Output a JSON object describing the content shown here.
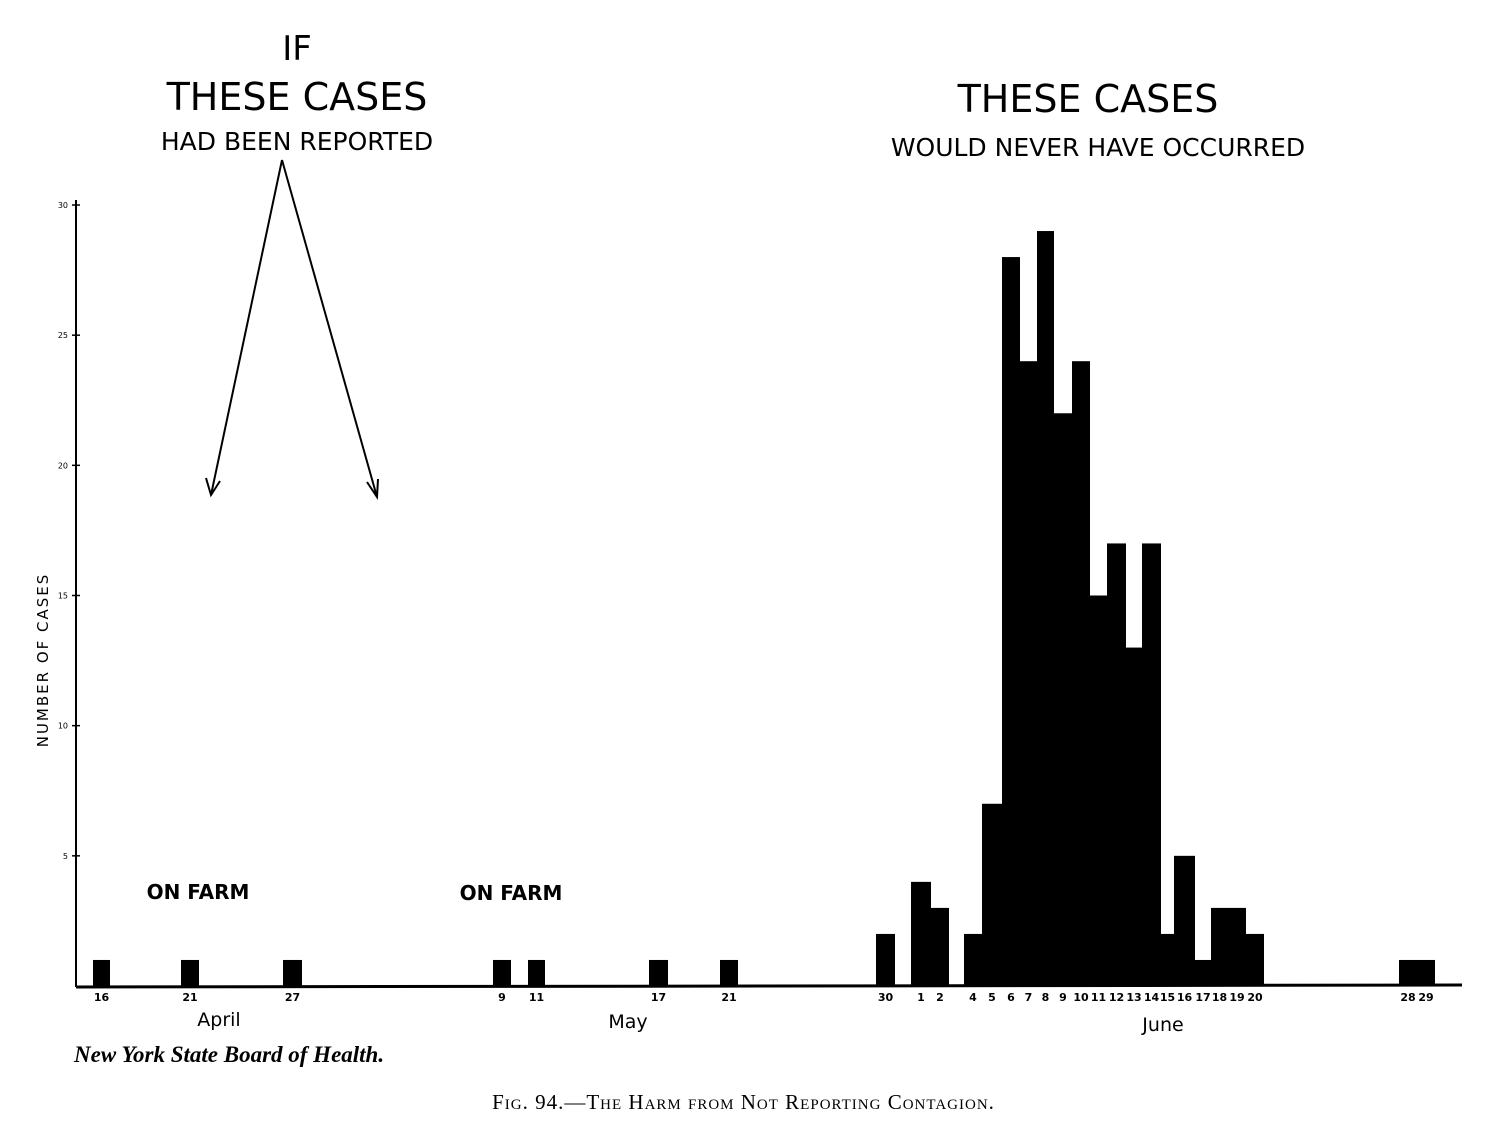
{
  "annotations": {
    "left_line1": "IF",
    "left_line2": "THESE CASES",
    "left_line3": "HAD BEEN REPORTED",
    "right_line1": "THESE CASES",
    "right_line2": "WOULD NEVER HAVE OCCURRED",
    "farm_1": "ON FARM",
    "farm_2": "ON FARM"
  },
  "credit": "New York State Board of Health.",
  "caption": "Fig. 94.—The Harm from Not Reporting Contagion.",
  "chart_data": {
    "type": "bar",
    "ylabel": "NUMBER OF CASES",
    "ylim": [
      0,
      30
    ],
    "yticks": [
      5,
      10,
      15,
      20,
      25,
      30
    ],
    "months": [
      "April",
      "May",
      "June"
    ],
    "bars": [
      {
        "label": "16",
        "value": 1
      },
      {
        "label": "21",
        "value": 1
      },
      {
        "label": "27",
        "value": 1
      },
      {
        "label": "9",
        "value": 1
      },
      {
        "label": "11",
        "value": 1
      },
      {
        "label": "17",
        "value": 1
      },
      {
        "label": "21",
        "value": 1
      },
      {
        "label": "30",
        "value": 2
      },
      {
        "label": "1",
        "value": 4
      },
      {
        "label": "2",
        "value": 3
      },
      {
        "label": "4",
        "value": 2
      },
      {
        "label": "5",
        "value": 7
      },
      {
        "label": "6",
        "value": 28
      },
      {
        "label": "7",
        "value": 24
      },
      {
        "label": "8",
        "value": 29
      },
      {
        "label": "9",
        "value": 22
      },
      {
        "label": "10",
        "value": 24
      },
      {
        "label": "11",
        "value": 15
      },
      {
        "label": "12",
        "value": 17
      },
      {
        "label": "13",
        "value": 13
      },
      {
        "label": "14",
        "value": 17
      },
      {
        "label": "15",
        "value": 2
      },
      {
        "label": "16",
        "value": 5
      },
      {
        "label": "17",
        "value": 1
      },
      {
        "label": "18",
        "value": 3
      },
      {
        "label": "19",
        "value": 3
      },
      {
        "label": "20",
        "value": 2
      },
      {
        "label": "28",
        "value": 1
      },
      {
        "label": "29",
        "value": 1
      }
    ]
  }
}
